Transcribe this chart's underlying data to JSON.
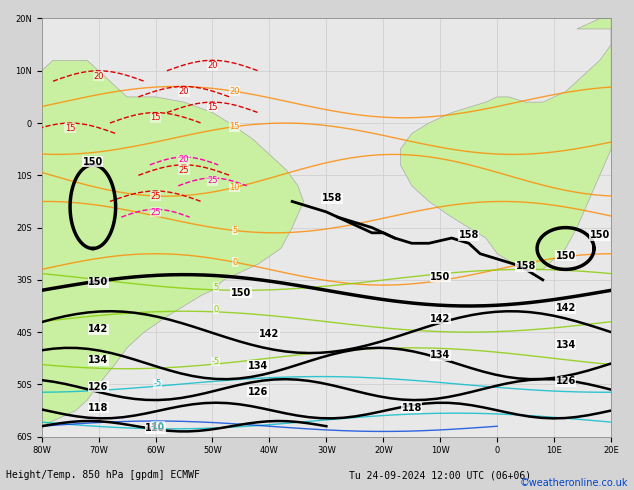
{
  "title": "Height/Temp. 850 hPa [gpdm] ECMWF",
  "datetime_label": "Tu 24-09-2024 12:00 UTC (06+06)",
  "copyright": "©weatheronline.co.uk",
  "background_color": "#d4d4d4",
  "land_color_tropical": "#c8f0a0",
  "land_color_southern": "#d0e8b0",
  "ocean_color": "#e8e8e8",
  "grid_color": "#cccccc",
  "contour_color_black": "#000000",
  "contour_color_orange": "#ff8800",
  "contour_color_red": "#dd0000",
  "contour_color_magenta": "#ff00aa",
  "contour_color_green": "#88cc00",
  "contour_color_cyan": "#00bbcc",
  "contour_color_blue": "#0044dd",
  "contour_linewidth_thick": 2.0,
  "contour_linewidth_thin": 1.0,
  "font_size_label": 7,
  "font_size_bottom": 7,
  "font_size_copyright": 7,
  "xlim": [
    -80,
    20
  ],
  "ylim": [
    -60,
    20
  ],
  "figsize": [
    6.34,
    4.9
  ],
  "dpi": 100
}
